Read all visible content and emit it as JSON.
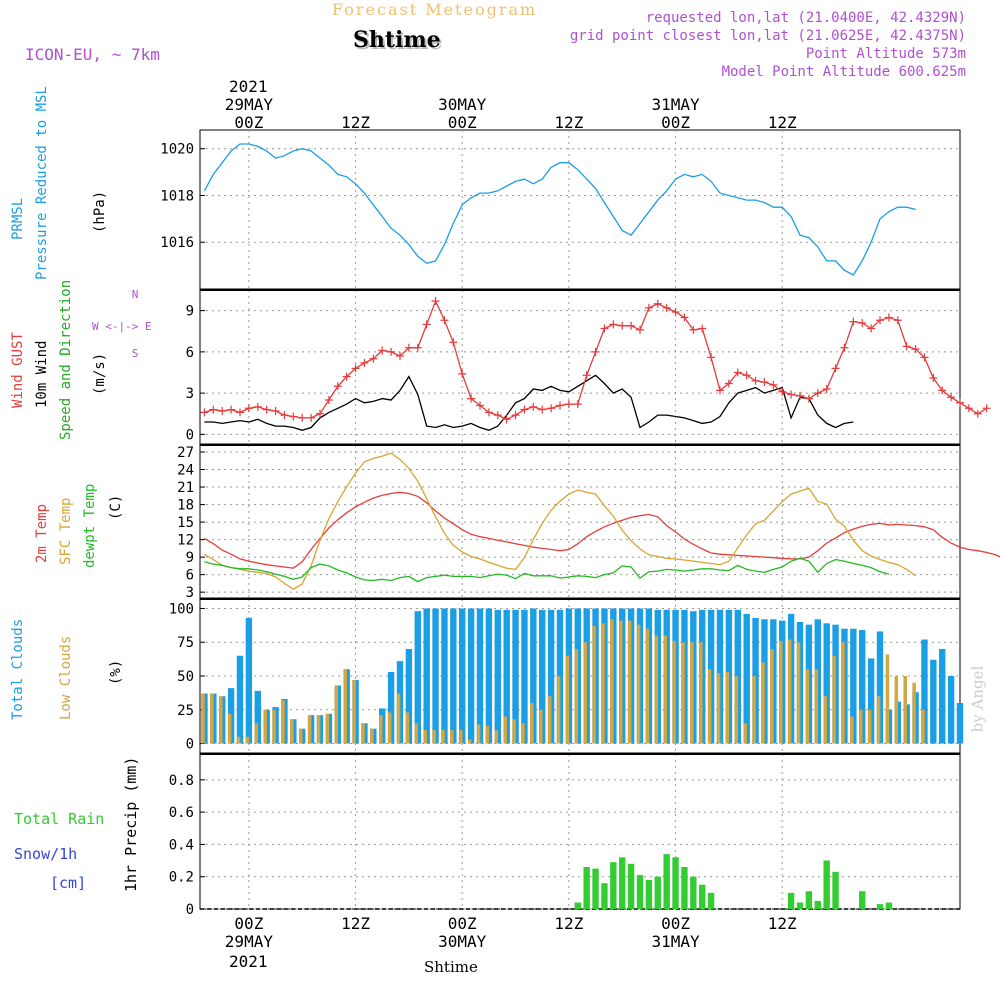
{
  "header": {
    "supertitle": "Forecast Meteogram",
    "title": "Shtime",
    "model": "ICON-EU, ~ 7km",
    "requested": "requested lon,lat (21.0400E, 42.4329N)",
    "grid_point": "grid point closest lon,lat (21.0625E, 42.4375N)",
    "point_altitude": "Point Altitude 573m",
    "model_altitude": "Model Point Altitude 600.625m",
    "footer": "Shtime",
    "watermark": "by Angel"
  },
  "colors": {
    "pressure": "#1a9ee6",
    "gust": "#e63c3c",
    "wind10": "#000000",
    "wind_dir": "#22aa22",
    "temp2m": "#e63c3c",
    "sfc_temp": "#d9a530",
    "dewpt": "#22bb22",
    "total_cloud": "#1a9ee6",
    "low_cloud": "#d2a545",
    "rain": "#33cc33",
    "snow": "#3344dd",
    "header_purple": "#b050d0",
    "header_orange": "#f0c070"
  },
  "time_axis": {
    "top_year": "2021",
    "bottom_year": "2021",
    "ticks": [
      {
        "t": 0,
        "label": "00Z",
        "date": "29MAY"
      },
      {
        "t": 12,
        "label": "12Z",
        "date": ""
      },
      {
        "t": 24,
        "label": "00Z",
        "date": "30MAY"
      },
      {
        "t": 36,
        "label": "12Z",
        "date": ""
      },
      {
        "t": 48,
        "label": "00Z",
        "date": "31MAY"
      },
      {
        "t": 60,
        "label": "12Z",
        "date": ""
      }
    ]
  },
  "chart_data": [
    {
      "type": "line",
      "panel": "pressure",
      "labels": {
        "c1": "PRMSL",
        "c2": "Pressure Reduced to MSL",
        "c3": "(hPa)"
      },
      "yticks": [
        1016,
        1018,
        1020
      ],
      "ylim": [
        1014.0,
        1020.8
      ],
      "x_start": -5,
      "x_step": 1,
      "series": [
        {
          "key": "pressure",
          "values": [
            1018.2,
            1018.9,
            1019.4,
            1019.9,
            1020.2,
            1020.2,
            1020.1,
            1019.9,
            1019.6,
            1019.7,
            1019.9,
            1020.0,
            1019.9,
            1019.6,
            1019.3,
            1018.9,
            1018.8,
            1018.5,
            1018.1,
            1017.6,
            1017.1,
            1016.6,
            1016.3,
            1015.9,
            1015.4,
            1015.1,
            1015.2,
            1015.9,
            1016.8,
            1017.6,
            1017.9,
            1018.1,
            1018.1,
            1018.2,
            1018.4,
            1018.6,
            1018.7,
            1018.5,
            1018.7,
            1019.2,
            1019.4,
            1019.4,
            1019.1,
            1018.7,
            1018.3,
            1017.7,
            1017.1,
            1016.5,
            1016.3,
            1016.8,
            1017.3,
            1017.8,
            1018.2,
            1018.7,
            1018.9,
            1018.8,
            1018.9,
            1018.6,
            1018.1,
            1018.0,
            1017.9,
            1017.8,
            1017.8,
            1017.7,
            1017.5,
            1017.5,
            1017.1,
            1016.3,
            1016.2,
            1015.8,
            1015.2,
            1015.2,
            1014.8,
            1014.6,
            1015.2,
            1016.0,
            1017.0,
            1017.3,
            1017.5,
            1017.5,
            1017.4
          ]
        }
      ]
    },
    {
      "type": "line",
      "panel": "wind",
      "labels": {
        "c1": "Wind GUST",
        "c2a": "10m Wind",
        "c2b": "Speed and Direction",
        "c3": "(m/s)",
        "compass": "W <-|-> E",
        "compass_n": "N",
        "compass_s": "S"
      },
      "yticks": [
        0,
        3,
        6,
        9
      ],
      "ylim": [
        -0.7,
        10.5
      ],
      "x_start": -5,
      "x_step": 1,
      "series": [
        {
          "key": "gust",
          "marker": "+",
          "values": [
            1.6,
            1.8,
            1.7,
            1.8,
            1.6,
            1.9,
            2.0,
            1.8,
            1.7,
            1.4,
            1.3,
            1.2,
            1.2,
            1.5,
            2.5,
            3.5,
            4.2,
            4.8,
            5.2,
            5.5,
            6.1,
            6.0,
            5.7,
            6.3,
            6.3,
            8.0,
            9.7,
            8.3,
            6.7,
            4.4,
            2.6,
            2.1,
            1.6,
            1.4,
            1.1,
            1.4,
            1.8,
            2.0,
            1.8,
            1.9,
            2.1,
            2.2,
            2.2,
            4.3,
            6.0,
            7.7,
            8.0,
            7.9,
            7.9,
            7.6,
            9.2,
            9.5,
            9.2,
            8.9,
            8.5,
            7.6,
            7.7,
            5.6,
            3.2,
            3.7,
            4.5,
            4.3,
            3.9,
            3.8,
            3.6,
            3.1,
            2.9,
            2.8,
            2.6,
            3.0,
            3.3,
            4.8,
            6.3,
            8.2,
            8.1,
            7.7,
            8.3,
            8.5,
            8.3,
            6.4,
            6.2,
            5.6,
            4.1,
            3.2,
            2.7,
            2.3,
            1.9,
            1.5,
            1.9
          ]
        },
        {
          "key": "wind10",
          "values": [
            0.9,
            0.9,
            0.8,
            0.9,
            1.0,
            0.9,
            1.1,
            0.8,
            0.6,
            0.6,
            0.5,
            0.3,
            0.5,
            1.2,
            1.6,
            1.9,
            2.2,
            2.6,
            2.3,
            2.4,
            2.6,
            2.5,
            3.2,
            4.2,
            2.9,
            0.6,
            0.5,
            0.7,
            0.5,
            0.6,
            0.8,
            0.5,
            0.3,
            0.6,
            1.4,
            2.3,
            2.6,
            3.3,
            3.2,
            3.5,
            3.2,
            3.1,
            3.5,
            3.9,
            4.3,
            3.7,
            3.0,
            3.3,
            2.7,
            0.5,
            0.9,
            1.4,
            1.4,
            1.3,
            1.2,
            1.0,
            0.8,
            0.9,
            1.3,
            2.3,
            3.0,
            3.2,
            3.4,
            3.0,
            3.2,
            3.4,
            1.2,
            2.7,
            2.6,
            1.4,
            0.8,
            0.5,
            0.8,
            0.9
          ]
        }
      ]
    },
    {
      "type": "line",
      "panel": "temperature",
      "labels": {
        "c1": "2m Temp",
        "c2": "SFC Temp",
        "c3": "dewpt Temp",
        "c4": "(C)"
      },
      "yticks": [
        3,
        6,
        9,
        12,
        15,
        18,
        21,
        24,
        27
      ],
      "ylim": [
        2.0,
        28.2
      ],
      "x_start": -5,
      "x_step": 1,
      "series": [
        {
          "key": "temp2m",
          "values": [
            12.2,
            11.3,
            10.2,
            9.5,
            8.7,
            8.3,
            8.0,
            7.7,
            7.5,
            7.3,
            7.1,
            8.2,
            10.3,
            12.2,
            14.0,
            15.4,
            16.6,
            17.6,
            18.4,
            19.1,
            19.6,
            19.9,
            20.1,
            19.9,
            19.4,
            18.3,
            16.9,
            15.7,
            14.7,
            13.7,
            12.9,
            12.5,
            12.2,
            11.9,
            11.6,
            11.3,
            11.0,
            10.7,
            10.5,
            10.3,
            10.1,
            10.3,
            11.3,
            12.5,
            13.4,
            14.2,
            14.8,
            15.3,
            15.8,
            16.1,
            16.3,
            15.9,
            14.4,
            13.3,
            12.1,
            11.2,
            10.4,
            9.7,
            9.5,
            9.4,
            9.3,
            9.2,
            9.1,
            9.0,
            8.9,
            8.8,
            8.7,
            8.7,
            9.0,
            10.1,
            11.4,
            12.3,
            13.2,
            13.8,
            14.3,
            14.6,
            14.8,
            14.5,
            14.6,
            14.5,
            14.4,
            14.2,
            13.7,
            12.4,
            11.4,
            10.7,
            10.3,
            10.1,
            9.8,
            9.4,
            8.7
          ]
        },
        {
          "key": "sfc_temp",
          "values": [
            9.5,
            8.6,
            7.6,
            7.2,
            6.9,
            6.6,
            6.4,
            6.2,
            5.6,
            4.5,
            3.5,
            4.4,
            7.5,
            11.9,
            15.6,
            18.5,
            21.1,
            23.4,
            25.3,
            25.9,
            26.3,
            26.8,
            25.7,
            24.2,
            22.0,
            19.0,
            15.9,
            13.1,
            11.0,
            9.9,
            9.1,
            8.7,
            8.1,
            7.6,
            7.1,
            6.9,
            8.9,
            12.0,
            14.8,
            17.0,
            18.6,
            19.8,
            20.5,
            20.1,
            19.8,
            17.8,
            16.0,
            13.6,
            11.8,
            10.4,
            9.4,
            9.1,
            8.8,
            8.7,
            8.5,
            8.3,
            8.1,
            7.9,
            7.7,
            8.3,
            10.6,
            12.8,
            14.7,
            15.3,
            16.9,
            18.5,
            19.8,
            20.3,
            20.8,
            18.5,
            18.1,
            15.5,
            14.3,
            11.9,
            10.1,
            9.2,
            8.6,
            8.1,
            7.7,
            6.9,
            5.8
          ]
        },
        {
          "key": "dewpt",
          "values": [
            8.2,
            7.8,
            7.6,
            7.2,
            7.0,
            7.0,
            6.8,
            6.5,
            6.1,
            5.7,
            5.2,
            5.6,
            7.2,
            7.8,
            7.5,
            6.8,
            6.3,
            5.6,
            5.1,
            5.0,
            5.2,
            5.0,
            5.5,
            5.7,
            4.8,
            5.5,
            5.7,
            5.9,
            5.7,
            5.7,
            5.7,
            5.5,
            5.8,
            6.1,
            5.9,
            5.3,
            6.2,
            5.8,
            5.8,
            5.8,
            5.4,
            5.6,
            5.8,
            5.7,
            5.5,
            6.0,
            6.3,
            7.5,
            7.3,
            5.4,
            6.5,
            6.6,
            6.9,
            6.8,
            6.6,
            6.8,
            7.0,
            7.0,
            6.8,
            6.7,
            7.6,
            6.9,
            6.6,
            6.4,
            6.9,
            7.3,
            8.3,
            8.8,
            8.3,
            6.4,
            7.9,
            8.6,
            8.3,
            7.9,
            7.6,
            7.2,
            6.5,
            6.1
          ]
        }
      ]
    },
    {
      "type": "bar",
      "panel": "clouds",
      "labels": {
        "c1": "Total Clouds",
        "c2": "Low Clouds",
        "c3": "(%)"
      },
      "yticks": [
        0,
        25,
        50,
        75,
        100
      ],
      "ylim": [
        -7,
        107
      ],
      "x_start": -5,
      "x_step": 1,
      "series": [
        {
          "key": "total_cloud",
          "values": [
            37,
            37,
            35,
            41,
            65,
            93,
            39,
            25,
            27,
            33,
            18,
            11,
            21,
            21,
            22,
            43,
            55,
            47,
            15,
            11,
            26,
            53,
            61,
            70,
            98,
            100,
            100,
            100,
            100,
            100,
            100,
            100,
            100,
            99,
            99,
            99,
            99,
            100,
            99,
            99,
            99,
            100,
            100,
            100,
            100,
            100,
            100,
            100,
            100,
            100,
            100,
            99,
            99,
            99,
            99,
            98,
            99,
            99,
            99,
            99,
            99,
            96,
            93,
            92,
            92,
            91,
            96,
            90,
            88,
            92,
            89,
            88,
            85,
            85,
            84,
            63,
            83,
            25,
            31,
            29,
            38,
            77,
            62,
            70,
            50,
            30
          ]
        },
        {
          "key": "low_cloud",
          "values": [
            37,
            37,
            35,
            22,
            5,
            5,
            15,
            25,
            25,
            32,
            18,
            11,
            21,
            21,
            22,
            43,
            55,
            47,
            15,
            11,
            21,
            23,
            37,
            23,
            15,
            10,
            10,
            10,
            10,
            10,
            3,
            14,
            13,
            10,
            20,
            18,
            15,
            30,
            25,
            35,
            50,
            65,
            70,
            75,
            87,
            89,
            92,
            91,
            91,
            88,
            85,
            80,
            80,
            76,
            75,
            75,
            75,
            55,
            52,
            53,
            50,
            15,
            50,
            60,
            70,
            76,
            77,
            75,
            55,
            55,
            35,
            65,
            75,
            20,
            25,
            25,
            35,
            66,
            50,
            50,
            45,
            25
          ]
        }
      ]
    },
    {
      "type": "bar",
      "panel": "precip",
      "labels": {
        "c1": "Total Rain",
        "c2": "Snow/1h",
        "c3": "[cm]",
        "c4": "1hr Precip (mm)"
      },
      "yticks": [
        0,
        0.2,
        0.4,
        0.6,
        0.8
      ],
      "ylim": [
        0,
        0.96
      ],
      "x_start": -5,
      "x_step": 1,
      "series": [
        {
          "key": "rain",
          "values": [
            0,
            0,
            0,
            0,
            0,
            0,
            0,
            0,
            0,
            0,
            0,
            0,
            0,
            0,
            0,
            0,
            0,
            0,
            0,
            0,
            0,
            0,
            0,
            0,
            0,
            0,
            0,
            0,
            0,
            0,
            0,
            0,
            0,
            0,
            0,
            0,
            0,
            0,
            0,
            0,
            0,
            0,
            0.04,
            0.26,
            0.25,
            0.16,
            0.29,
            0.32,
            0.28,
            0.21,
            0.18,
            0.2,
            0.34,
            0.32,
            0.26,
            0.2,
            0.15,
            0.1,
            0,
            0,
            0,
            0,
            0,
            0,
            0,
            0,
            0.1,
            0.04,
            0.11,
            0.05,
            0.3,
            0.23,
            0,
            0,
            0.11,
            0,
            0.03,
            0.04,
            0
          ]
        }
      ]
    }
  ]
}
